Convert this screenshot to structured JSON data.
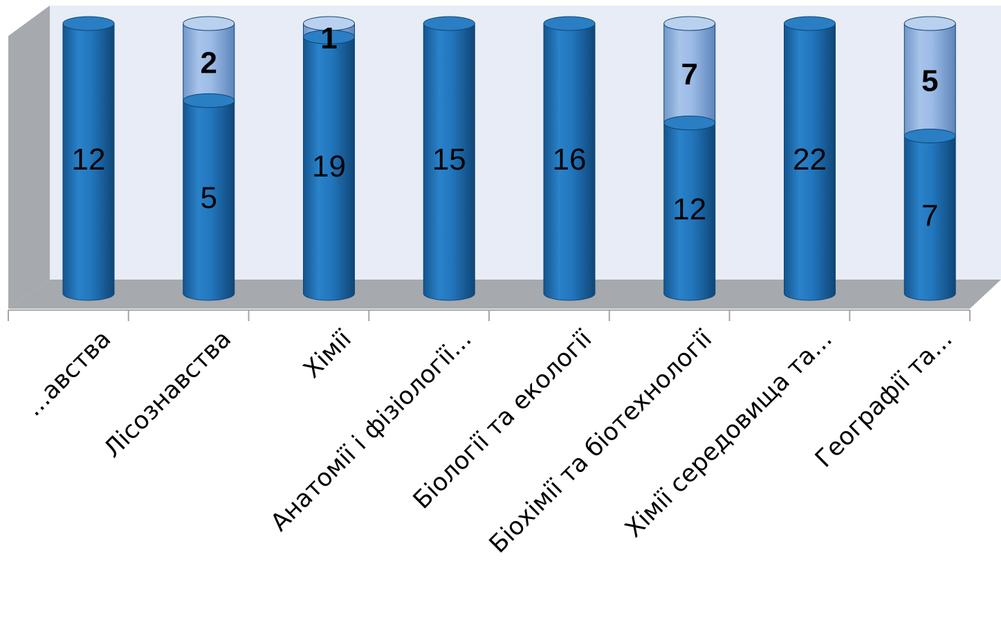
{
  "chart_data": {
    "type": "bar",
    "stacked": true,
    "style": "3d-cylinder",
    "categories": [
      "...авства",
      "Лісознавства",
      "Хімії",
      "Анатомії і фізіології...",
      "Біології та екології",
      "Біохімії та біотехнології",
      "Хімії середовища та...",
      "Географії та..."
    ],
    "series": [
      {
        "values": [
          12,
          5,
          19,
          15,
          16,
          12,
          22,
          7
        ],
        "color": "#1f6fb4"
      },
      {
        "values": [
          null,
          2,
          1,
          null,
          null,
          7,
          null,
          5
        ],
        "color": "#8fb3e0"
      }
    ],
    "ylim": [
      0,
      22
    ],
    "grid": false,
    "legend": "none",
    "colors": {
      "plot_back_wall": "#e8ecf6",
      "side_wall": "#a6a9ad",
      "floor": "#a6a9ad",
      "axis": "#a6a6a6"
    }
  }
}
